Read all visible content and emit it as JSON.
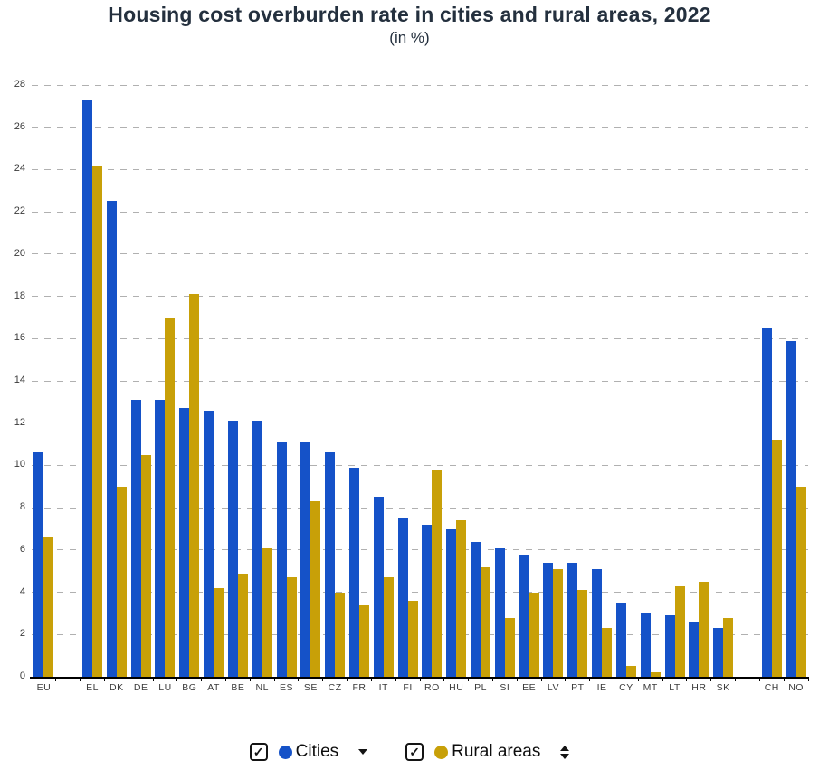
{
  "title": "Housing cost overburden rate in cities and rural areas, 2022",
  "subtitle": "(in %)",
  "colors": {
    "cities": "#1552C8",
    "rural": "#C8A008",
    "title_text": "#24303E",
    "grid": "#B0B0B0",
    "axis": "#000000",
    "tick_label": "#3A3A3A"
  },
  "chart_data": {
    "type": "bar",
    "title": "Housing cost overburden rate in cities and rural areas, 2022",
    "subtitle": "(in %)",
    "categories": [
      "EU",
      "EL",
      "DK",
      "DE",
      "LU",
      "BG",
      "AT",
      "BE",
      "NL",
      "ES",
      "SE",
      "CZ",
      "FR",
      "IT",
      "FI",
      "RO",
      "HU",
      "PL",
      "SI",
      "EE",
      "LV",
      "PT",
      "IE",
      "CY",
      "MT",
      "LT",
      "HR",
      "SK",
      "CH",
      "NO"
    ],
    "series": [
      {
        "name": "Cities",
        "color": "#1552C8",
        "values": [
          10.6,
          27.3,
          22.5,
          13.1,
          13.1,
          12.7,
          12.6,
          12.1,
          12.1,
          11.1,
          11.1,
          10.6,
          9.9,
          8.5,
          7.5,
          7.2,
          7.0,
          6.4,
          6.1,
          5.8,
          5.4,
          5.4,
          5.1,
          3.5,
          3.0,
          2.9,
          2.6,
          2.3,
          16.5,
          15.9
        ]
      },
      {
        "name": "Rural areas",
        "color": "#C8A008",
        "values": [
          6.6,
          24.2,
          9.0,
          10.5,
          17.0,
          18.1,
          4.2,
          4.9,
          6.1,
          4.7,
          8.3,
          4.0,
          3.4,
          4.7,
          3.6,
          9.8,
          7.4,
          5.2,
          2.8,
          4.0,
          5.1,
          4.1,
          2.3,
          0.5,
          0.2,
          4.3,
          4.5,
          2.8,
          11.2,
          9.0
        ]
      }
    ],
    "ylim": [
      0,
      28
    ],
    "ytick_step": 2,
    "grid": "horizontal-dashed",
    "legend_position": "bottom",
    "separators_after": [
      "EU",
      "SK"
    ]
  },
  "legend": {
    "checkbox_glyph": "✓",
    "items": [
      {
        "label": "Cities",
        "checked": true,
        "color": "#1552C8",
        "sort_icon": "sort-descending"
      },
      {
        "label": "Rural areas",
        "checked": true,
        "color": "#C8A008",
        "sort_icon": "sort-up-down"
      }
    ]
  }
}
